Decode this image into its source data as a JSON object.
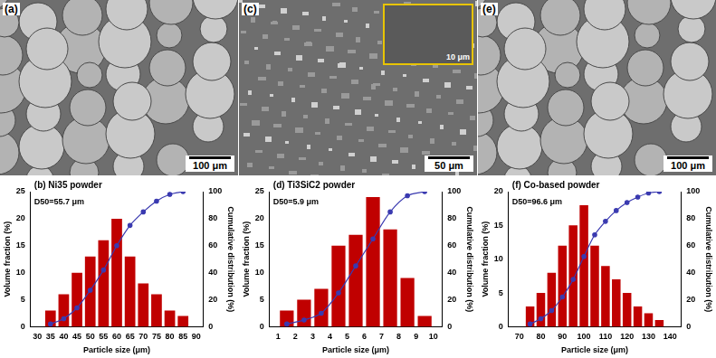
{
  "images": [
    {
      "label": "(a)",
      "scale_bar": "100 μm",
      "kind": "spheres"
    },
    {
      "label": "(c)",
      "scale_bar": "50 μm",
      "inset_scale_bar": "10 μm",
      "kind": "flakes"
    },
    {
      "label": "(e)",
      "scale_bar": "100 μm",
      "kind": "spheres"
    }
  ],
  "chart_data": [
    {
      "type": "bar",
      "panel": "(b)",
      "title": "Ni35 powder",
      "annotation": "D50=55.7 μm",
      "x_label": "Particle size (μm)",
      "y_label": "Volume fraction (%)",
      "y2_label": "Cumulative distribution (%)",
      "x": [
        35,
        40,
        45,
        50,
        55,
        60,
        65,
        70,
        75,
        80,
        85
      ],
      "series": [
        {
          "type": "bar",
          "color": "#c00000",
          "values": [
            3,
            6,
            10,
            13,
            16,
            20,
            13,
            8,
            6,
            3,
            2
          ]
        },
        {
          "type": "line",
          "axis": "y2",
          "color": "#3a3ab0",
          "marker": "circle",
          "values": [
            2,
            6,
            14,
            27,
            42,
            60,
            75,
            85,
            93,
            98,
            100
          ]
        }
      ],
      "xlim": [
        30,
        90
      ],
      "xticks": [
        30,
        35,
        40,
        45,
        50,
        55,
        60,
        65,
        70,
        75,
        80,
        85,
        90
      ],
      "ylim": [
        0,
        25
      ],
      "yticks": [
        0,
        5,
        10,
        15,
        20,
        25
      ],
      "y2lim": [
        0,
        100
      ],
      "y2ticks": [
        0,
        20,
        40,
        60,
        80,
        100
      ],
      "grid": false
    },
    {
      "type": "bar",
      "panel": "(d)",
      "title": "Ti3SiC2 powder",
      "annotation": "D50=5.9 μm",
      "x_label": "Particle size (μm)",
      "y_label": "Volume fraction (%)",
      "y2_label": "Cumulative distribution (%)",
      "x": [
        1.5,
        2.5,
        3.5,
        4.5,
        5.5,
        6.5,
        7.5,
        8.5,
        9.5
      ],
      "series": [
        {
          "type": "bar",
          "color": "#c00000",
          "values": [
            3,
            5,
            7,
            15,
            17,
            24,
            18,
            9,
            2
          ]
        },
        {
          "type": "line",
          "axis": "y2",
          "color": "#3a3ab0",
          "marker": "circle",
          "values": [
            2,
            5,
            10,
            25,
            45,
            65,
            85,
            97,
            100
          ]
        }
      ],
      "xlim": [
        1,
        10
      ],
      "xticks": [
        1,
        2,
        3,
        4,
        5,
        6,
        7,
        8,
        9,
        10
      ],
      "ylim": [
        0,
        25
      ],
      "yticks": [
        0,
        5,
        10,
        15,
        20,
        25
      ],
      "y2lim": [
        0,
        100
      ],
      "y2ticks": [
        0,
        20,
        40,
        60,
        80,
        100
      ],
      "grid": false
    },
    {
      "type": "bar",
      "panel": "(f)",
      "title": "Co-based powder",
      "annotation": "D50=96.6 μm",
      "x_label": "Particle size (μm)",
      "y_label": "Volume fraction (%)",
      "y2_label": "Cumulative distribution (%)",
      "x": [
        75,
        80,
        85,
        90,
        95,
        100,
        105,
        110,
        115,
        120,
        125,
        130,
        135
      ],
      "series": [
        {
          "type": "bar",
          "color": "#c00000",
          "values": [
            3,
            5,
            8,
            12,
            15,
            18,
            12,
            9,
            7,
            5,
            3,
            2,
            1
          ]
        },
        {
          "type": "line",
          "axis": "y2",
          "color": "#3a3ab0",
          "marker": "circle",
          "values": [
            2,
            6,
            12,
            22,
            35,
            52,
            68,
            78,
            86,
            92,
            96,
            99,
            100
          ]
        }
      ],
      "xlim": [
        70,
        140
      ],
      "xticks": [
        70,
        80,
        90,
        100,
        110,
        120,
        130,
        140
      ],
      "ylim": [
        0,
        20
      ],
      "yticks": [
        0,
        5,
        10,
        15,
        20
      ],
      "y2lim": [
        0,
        100
      ],
      "y2ticks": [
        0,
        20,
        40,
        60,
        80,
        100
      ],
      "grid": false
    }
  ]
}
